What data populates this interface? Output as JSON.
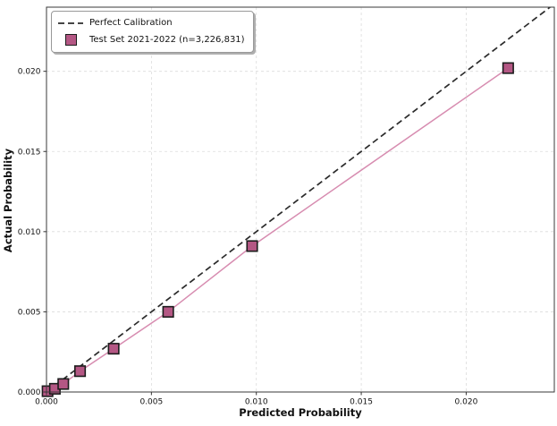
{
  "chart_data": {
    "type": "line",
    "title": "",
    "xlabel": "Predicted Probability",
    "ylabel": "Actual Probability",
    "xlim": [
      0,
      0.0242
    ],
    "ylim": [
      0,
      0.024
    ],
    "xticks": [
      0.0,
      0.005,
      0.01,
      0.015,
      0.02
    ],
    "yticks": [
      0.0,
      0.005,
      0.01,
      0.015,
      0.02
    ],
    "tick_decimals": 3,
    "grid": true,
    "grid_color": "#dcdcdc",
    "spine_color": "#3a3a3a",
    "legend_position": "upper-left",
    "series": [
      {
        "name": "Perfect Calibration",
        "style": "dashed",
        "color": "#2b2b2b",
        "points": [
          [
            0,
            0
          ],
          [
            0.024,
            0.024
          ]
        ]
      },
      {
        "name": "Test Set 2021-2022 (n=3,226,831)",
        "style": "solid",
        "marker": "square",
        "color": "#d78cb0",
        "marker_fill": "#b45784",
        "marker_edge": "#1c1c1c",
        "points": [
          [
            5e-05,
            5e-05
          ],
          [
            0.0004,
            0.0002
          ],
          [
            0.0008,
            0.0005
          ],
          [
            0.0016,
            0.0013
          ],
          [
            0.0032,
            0.0027
          ],
          [
            0.0058,
            0.005
          ],
          [
            0.0098,
            0.0091
          ],
          [
            0.022,
            0.0202
          ]
        ]
      }
    ]
  }
}
